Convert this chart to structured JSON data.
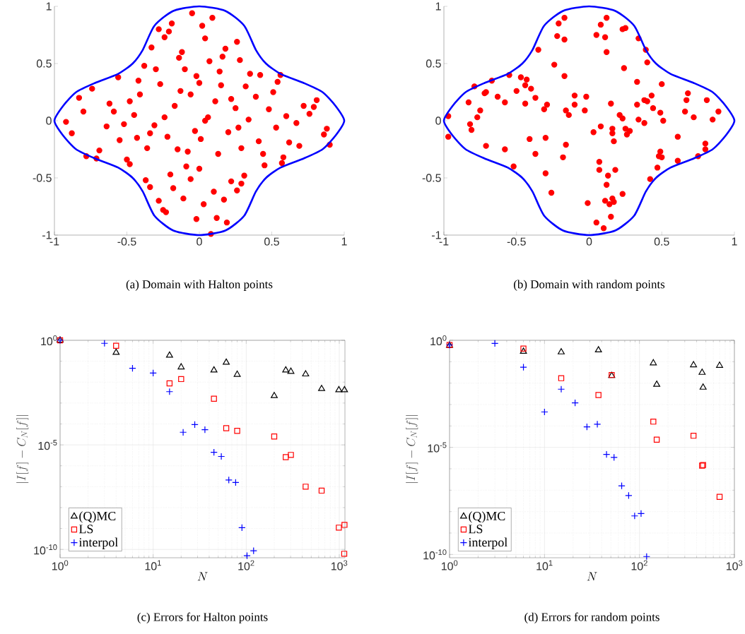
{
  "chart_data": [
    {
      "type": "scatter",
      "title": "(a) Domain with Halton points",
      "xlim": [
        -1,
        1
      ],
      "ylim": [
        -1,
        1
      ],
      "xticks": [
        -1,
        -0.5,
        0,
        0.5,
        1
      ],
      "yticks": [
        -1,
        -0.5,
        0,
        0.5,
        1
      ],
      "series": [
        {
          "type": "scatter",
          "color": "#ff0000",
          "marker": "circle",
          "x": [
            -0.05,
            -0.19,
            -0.28,
            -0.21,
            -0.24,
            -0.33,
            -0.12,
            -0.14,
            -0.38,
            -0.3,
            -0.56,
            -0.1,
            -0.02,
            0.0,
            -0.42,
            -0.27,
            -0.74,
            -0.13,
            -0.41,
            -0.06,
            -0.83,
            -0.48,
            -0.62,
            -0.17,
            -0.8,
            -0.59,
            -0.45,
            -0.24,
            -0.92,
            -0.64,
            -0.52,
            -0.31,
            -0.34,
            -0.88,
            -0.22,
            -0.03,
            -0.55,
            -0.43,
            -0.36,
            -0.15,
            -0.08,
            -0.69,
            -0.78,
            -0.71,
            -0.5,
            -0.48,
            -0.09,
            -0.2,
            -0.37,
            -0.06,
            -0.34,
            -0.18,
            -0.28,
            -0.11,
            -0.25,
            -0.23,
            -0.02,
            0.09,
            0.02,
            0.04,
            0.26,
            0.18,
            0.16,
            0.07,
            0.28,
            0.14,
            0.35,
            0.42,
            0.56,
            0.54,
            0.15,
            0.32,
            0.51,
            0.39,
            0.11,
            0.22,
            0.25,
            0.48,
            0.72,
            0.81,
            0.79,
            0.76,
            0.6,
            0.06,
            0.04,
            0.34,
            0.67,
            0.27,
            0.53,
            0.2,
            0.88,
            0.86,
            0.01,
            0.41,
            0.62,
            0.69,
            0.9,
            0.29,
            0.13,
            0.44,
            0.58,
            0.57,
            0.45,
            0.0,
            0.31,
            0.22,
            0.29,
            0.26,
            0.1,
            0.17,
            0.03,
            0.12,
            0.19,
            0.08
          ],
          "values": [
            0.94,
            0.85,
            0.8,
            0.78,
            0.73,
            0.64,
            0.6,
            0.55,
            0.48,
            0.45,
            0.38,
            0.45,
            0.39,
            0.33,
            0.35,
            0.32,
            0.28,
            0.26,
            0.23,
            0.23,
            0.2,
            0.17,
            0.15,
            0.13,
            0.08,
            0.08,
            0.05,
            0.03,
            -0.01,
            -0.05,
            -0.03,
            -0.04,
            -0.11,
            -0.11,
            -0.14,
            -0.09,
            -0.17,
            -0.15,
            -0.24,
            -0.25,
            -0.27,
            -0.26,
            -0.31,
            -0.33,
            -0.34,
            -0.38,
            -0.4,
            -0.47,
            -0.52,
            -0.51,
            -0.58,
            -0.59,
            -0.7,
            -0.68,
            -0.78,
            -0.8,
            -0.86,
            0.9,
            0.83,
            0.72,
            0.69,
            0.63,
            0.56,
            0.52,
            0.53,
            0.43,
            0.41,
            0.4,
            0.4,
            0.34,
            0.31,
            0.3,
            0.25,
            0.21,
            0.17,
            0.19,
            0.11,
            0.1,
            0.13,
            0.18,
            0.12,
            0.06,
            0.04,
            0.03,
            0.0,
            0.01,
            -0.02,
            -0.06,
            -0.06,
            -0.1,
            -0.07,
            -0.12,
            -0.16,
            -0.18,
            -0.19,
            -0.22,
            -0.21,
            -0.24,
            -0.29,
            -0.29,
            -0.32,
            -0.37,
            -0.39,
            -0.42,
            -0.48,
            -0.53,
            -0.55,
            -0.61,
            -0.62,
            -0.69,
            -0.73,
            -0.85,
            -0.89,
            -0.99
          ]
        }
      ]
    },
    {
      "type": "scatter",
      "title": "(b) Domain with random points",
      "xlim": [
        -1,
        1
      ],
      "ylim": [
        -1,
        1
      ],
      "xticks": [
        -1,
        -0.5,
        0,
        0.5,
        1
      ],
      "yticks": [
        -1,
        -0.5,
        0,
        0.5,
        1
      ],
      "series": [
        {
          "type": "scatter",
          "color": "#ff0000",
          "marker": "circle",
          "x": [
            -0.17,
            -0.21,
            -0.22,
            -0.17,
            -0.35,
            -0.24,
            -0.17,
            -0.55,
            -0.67,
            -0.47,
            -0.43,
            -0.44,
            -0.4,
            -0.79,
            -0.5,
            -0.71,
            -0.72,
            -0.63,
            -0.37,
            -0.83,
            -0.58,
            -0.44,
            -0.29,
            -0.31,
            -0.16,
            -0.14,
            -0.75,
            -0.77,
            -0.97,
            -0.82,
            -0.81,
            -0.97,
            -0.3,
            -0.41,
            -0.16,
            -0.71,
            -0.58,
            -0.37,
            -0.18,
            -0.52,
            -0.3,
            -0.26,
            0.12,
            0.08,
            0.23,
            0.25,
            0.05,
            0.11,
            0.34,
            0.39,
            0.12,
            0.4,
            0.24,
            0.33,
            0.5,
            0.68,
            -0.1,
            -0.02,
            0.43,
            0.38,
            0.4,
            0.67,
            0.81,
            0.15,
            -0.1,
            0.33,
            0.44,
            -0.03,
            0.49,
            0.66,
            0.89,
            0.21,
            0.23,
            0.72,
            0.85,
            0.34,
            0.38,
            0.51,
            0.08,
            0.03,
            0.16,
            0.16,
            0.25,
            0.28,
            0.26,
            0.17,
            0.61,
            0.8,
            0.8,
            0.49,
            0.48,
            0.5,
            0.75,
            0.61,
            0.47,
            0.42,
            0.07,
            0.07,
            0.18,
            0.13,
            0.12,
            0.23,
            -0.01,
            0.11,
            0.16,
            0.17,
            0.14,
            0.15,
            0.05,
            0.1
          ],
          "values": [
            0.9,
            0.85,
            0.74,
            0.71,
            0.62,
            0.49,
            0.39,
            0.4,
            0.35,
            0.38,
            0.36,
            0.31,
            0.28,
            0.3,
            0.26,
            0.25,
            0.24,
            0.21,
            0.2,
            0.16,
            0.16,
            0.15,
            0.14,
            0.1,
            0.09,
            0.05,
            0.09,
            0.03,
            0.04,
            -0.03,
            -0.08,
            -0.14,
            -0.15,
            -0.16,
            -0.21,
            -0.22,
            -0.25,
            -0.29,
            -0.32,
            -0.4,
            -0.46,
            -0.63,
            0.9,
            0.84,
            0.8,
            0.81,
            0.75,
            0.73,
            0.72,
            0.62,
            0.6,
            0.51,
            0.46,
            0.34,
            0.32,
            0.24,
            0.22,
            0.21,
            0.22,
            0.18,
            0.17,
            0.18,
            0.18,
            0.15,
            0.14,
            0.14,
            0.11,
            0.09,
            0.07,
            0.08,
            0.08,
            0.05,
            0.02,
            0.03,
            0.01,
            0.01,
            -0.02,
            0.0,
            -0.05,
            -0.1,
            -0.07,
            -0.11,
            -0.07,
            -0.09,
            -0.12,
            -0.18,
            -0.14,
            -0.2,
            -0.25,
            -0.27,
            -0.31,
            -0.32,
            -0.31,
            -0.35,
            -0.41,
            -0.51,
            -0.36,
            -0.43,
            -0.43,
            -0.48,
            -0.56,
            -0.64,
            -0.72,
            -0.7,
            -0.68,
            -0.71,
            -0.73,
            -0.84,
            -0.89,
            -0.94
          ]
        }
      ]
    },
    {
      "type": "scatter",
      "title": "(c) Errors for Halton points",
      "xlabel": "N",
      "ylabel": "|I[f] - C_N[f]|",
      "log": "xy",
      "grid": true,
      "legend": "bottom left",
      "xlim": [
        1,
        1150
      ],
      "ylim": [
        4e-11,
        1
      ],
      "xticks": [
        {
          "value": 1,
          "label": "10$^{0}$"
        },
        {
          "value": 10,
          "label": "10$^{1}$"
        },
        {
          "value": 100,
          "label": "10$^{2}$"
        },
        {
          "value": 1000,
          "label": "10$^{3}$"
        }
      ],
      "yticks": [
        {
          "value": 1e-10,
          "label": "10$^{-10}$"
        },
        {
          "value": 1e-05,
          "label": "10$^{-5}$"
        },
        {
          "value": 1,
          "label": "10$^{0}$"
        }
      ],
      "series": [
        {
          "name": "(Q)MC",
          "color": "#000000",
          "marker": "triangle",
          "x": [
            1,
            4,
            15,
            20,
            45,
            61,
            80,
            200,
            266,
            302,
            435,
            646,
            989,
            1137
          ],
          "values": [
            1,
            0.26,
            0.19,
            0.052,
            0.037,
            0.087,
            0.023,
            0.0022,
            0.037,
            0.032,
            0.024,
            0.0048,
            0.0042,
            0.0042
          ]
        },
        {
          "name": "LS",
          "color": "#ff0000",
          "marker": "square",
          "x": [
            1,
            4,
            15,
            20,
            45,
            61,
            80,
            200,
            266,
            302,
            435,
            646,
            989,
            1137,
            1130
          ],
          "values": [
            1,
            0.55,
            0.0087,
            0.014,
            0.0016,
            6.3e-05,
            4.7e-05,
            2.5e-05,
            2.6e-06,
            3.3e-06,
            1e-07,
            6.5e-08,
            1.1e-09,
            1.5e-09,
            6.2e-11
          ]
        },
        {
          "name": "interpol",
          "color": "#0000ff",
          "marker": "cross",
          "x": [
            1,
            3,
            6,
            10,
            15,
            21,
            28,
            36,
            45,
            54,
            65,
            77,
            90,
            102,
            120
          ],
          "values": [
            1,
            0.72,
            0.046,
            0.027,
            0.0035,
            4e-05,
            9.3e-05,
            5.3e-05,
            4.4e-06,
            2.8e-06,
            2.1e-07,
            1.6e-07,
            1.1e-09,
            5e-11,
            8.6e-11
          ]
        }
      ]
    },
    {
      "type": "scatter",
      "title": "(d) Errors for random points",
      "xlabel": "N",
      "ylabel": "|I[f] - C_N[f]|",
      "log": "xy",
      "grid": true,
      "legend": "bottom left",
      "xlim": [
        1,
        1000
      ],
      "ylim": [
        7e-11,
        1
      ],
      "xticks": [
        {
          "value": 1,
          "label": "10$^{0}$"
        },
        {
          "value": 10,
          "label": "10$^{1}$"
        },
        {
          "value": 100,
          "label": "10$^{2}$"
        },
        {
          "value": 1000,
          "label": "10$^{3}$"
        }
      ],
      "yticks": [
        {
          "value": 1e-10,
          "label": "10$^{-10}$"
        },
        {
          "value": 1e-05,
          "label": "10$^{-5}$"
        },
        {
          "value": 1,
          "label": "10$^{0}$"
        }
      ],
      "series": [
        {
          "name": "(Q)MC",
          "color": "#000000",
          "marker": "triangle",
          "x": [
            1,
            6,
            15,
            37,
            51,
            140,
            152,
            371,
            457,
            468,
            698
          ],
          "values": [
            0.57,
            0.3,
            0.28,
            0.35,
            0.022,
            0.086,
            0.0086,
            0.07,
            0.031,
            0.0063,
            0.066
          ]
        },
        {
          "name": "LS",
          "color": "#ff0000",
          "marker": "square",
          "x": [
            1,
            6,
            15,
            37,
            51,
            140,
            152,
            371,
            457,
            468,
            698
          ],
          "values": [
            0.6,
            0.41,
            0.017,
            0.0028,
            0.024,
            0.00016,
            2.3e-05,
            3.5e-05,
            1.4e-06,
            1.5e-06,
            4.9e-08
          ]
        },
        {
          "name": "interpol",
          "color": "#0000ff",
          "marker": "cross",
          "x": [
            1,
            3,
            6,
            10,
            15,
            21,
            28,
            36,
            45,
            54,
            65,
            77,
            89,
            104,
            119
          ],
          "values": [
            0.6,
            0.72,
            0.055,
            0.00045,
            0.0052,
            0.0012,
            9.1e-05,
            0.00012,
            4.7e-06,
            3.4e-06,
            1.6e-07,
            5.6e-08,
            6.3e-09,
            8.1e-09,
            8e-11
          ]
        }
      ]
    }
  ]
}
